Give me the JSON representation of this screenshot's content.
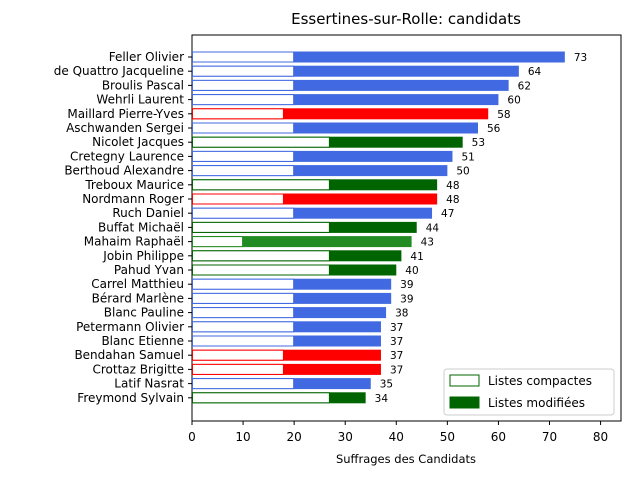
{
  "chart_data": {
    "type": "bar",
    "orientation": "horizontal",
    "title": "Essertines-sur-Rolle: candidats",
    "xlabel": "Suffrages des Candidats",
    "ylabel": "",
    "xlim": [
      0,
      84
    ],
    "xticks": [
      0,
      10,
      20,
      30,
      40,
      50,
      60,
      70,
      80
    ],
    "categories": [
      "Feller Olivier",
      "de Quattro Jacqueline",
      "Broulis Pascal",
      "Wehrli Laurent",
      "Maillard Pierre-Yves",
      "Aschwanden Sergei",
      "Nicolet Jacques",
      "Cretegny Laurence",
      "Berthoud Alexandre",
      "Treboux Maurice",
      "Nordmann Roger",
      "Ruch Daniel",
      "Buffat Michaël",
      "Mahaim Raphaël",
      "Jobin Philippe",
      "Pahud Yvan",
      "Carrel Matthieu",
      "Bérard Marlène",
      "Blanc Pauline",
      "Petermann Olivier",
      "Blanc Etienne",
      "Bendahan Samuel",
      "Crottaz Brigitte",
      "Latif Nasrat",
      "Freymond Sylvain"
    ],
    "totals": [
      73,
      64,
      62,
      60,
      58,
      56,
      53,
      51,
      50,
      48,
      48,
      47,
      44,
      43,
      41,
      40,
      39,
      39,
      38,
      37,
      37,
      37,
      37,
      35,
      34
    ],
    "compact": [
      20,
      20,
      20,
      20,
      18,
      20,
      27,
      20,
      20,
      27,
      18,
      20,
      27,
      10,
      27,
      27,
      20,
      20,
      20,
      20,
      20,
      18,
      18,
      20,
      27
    ],
    "colors": [
      "#4169e1",
      "#4169e1",
      "#4169e1",
      "#4169e1",
      "#ff0000",
      "#4169e1",
      "#006400",
      "#4169e1",
      "#4169e1",
      "#006400",
      "#ff0000",
      "#4169e1",
      "#006400",
      "#228b22",
      "#006400",
      "#006400",
      "#4169e1",
      "#4169e1",
      "#4169e1",
      "#4169e1",
      "#4169e1",
      "#ff0000",
      "#ff0000",
      "#4169e1",
      "#006400"
    ],
    "legend": {
      "position": "lower-right",
      "entries": [
        {
          "label": "Listes compactes",
          "style": "outline",
          "color": "#006400"
        },
        {
          "label": "Listes modifiées",
          "style": "filled",
          "color": "#006400"
        }
      ]
    },
    "grid": false
  }
}
